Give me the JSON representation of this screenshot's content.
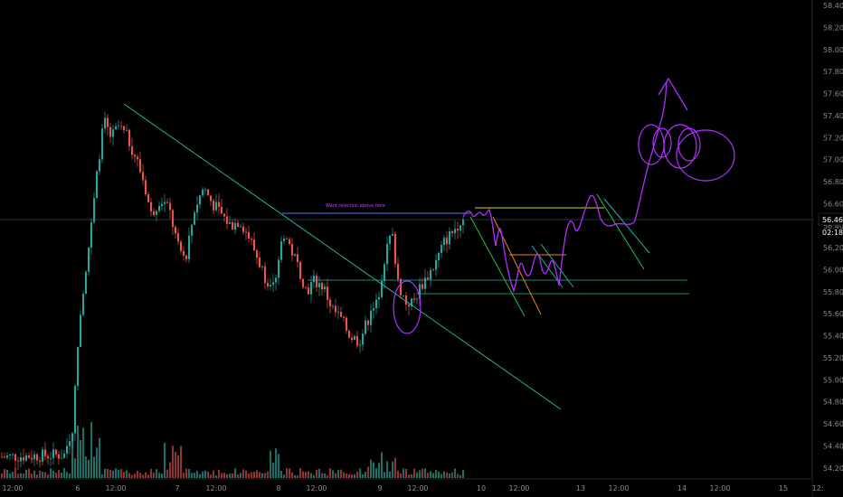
{
  "chart_data": {
    "type": "candlestick",
    "title": "",
    "xlabel": "",
    "ylabel": "",
    "ylim": [
      54.1,
      58.45
    ],
    "y_ticks": [
      "58.40",
      "58.20",
      "58.00",
      "57.80",
      "57.60",
      "57.40",
      "57.20",
      "57.00",
      "56.80",
      "56.60",
      "56.40",
      "56.20",
      "56.00",
      "55.80",
      "55.60",
      "55.40",
      "55.20",
      "55.00",
      "54.80",
      "54.60",
      "54.40",
      "54.20"
    ],
    "x_ticks": [
      "12:00",
      "6",
      "12:00",
      "7",
      "12:00",
      "8",
      "12:00",
      "9",
      "12:00",
      "10",
      "12:00",
      "13",
      "12:00",
      "14",
      "12:00",
      "15",
      "12:"
    ],
    "last_price": "56.46",
    "countdown": "02:18",
    "annotation_text": "Want rejection above here",
    "colors": {
      "up": "#26a69a",
      "down": "#ef5350",
      "drawing_cyan": "#1fb5a0",
      "drawing_purple": "#b030ff",
      "drawing_yellow": "#d6d62a",
      "drawing_orange": "#f08020",
      "drawing_green": "#25c050",
      "drawing_blue": "#5a78ff"
    },
    "candles_summary": {
      "day6_open": 54.3,
      "day6_high": 57.5,
      "day7_range": [
        56.2,
        57.0
      ],
      "day8_range": [
        55.3,
        56.5
      ],
      "day9_low": 55.2,
      "day9_high": 56.5,
      "current": 56.46
    }
  }
}
